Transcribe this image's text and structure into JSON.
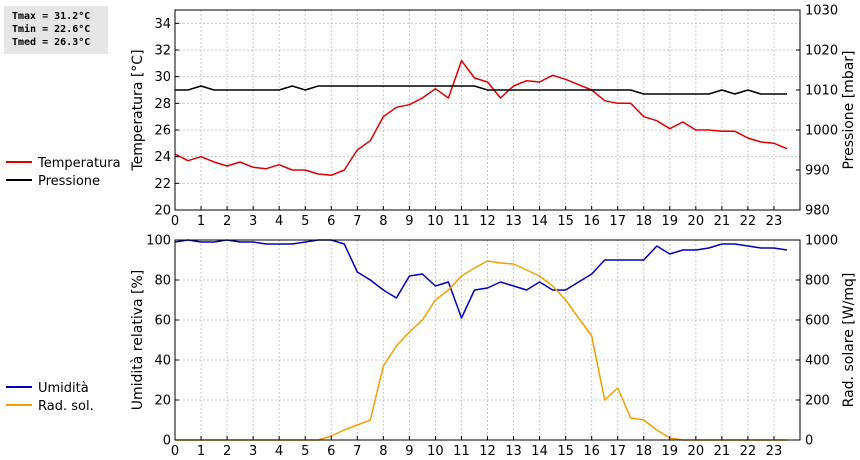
{
  "stats": {
    "tmax": "Tmax = 31.2°C",
    "tmin": "Tmin = 22.6°C",
    "tmed": "Tmed = 26.3°C"
  },
  "chart_data": [
    {
      "type": "line",
      "ylabel": "Temperatura [°C]",
      "ylabel_right": "Pressione [mbar]",
      "xlim": [
        0,
        24
      ],
      "x_ticks": [
        0,
        1,
        2,
        3,
        4,
        5,
        6,
        7,
        8,
        9,
        10,
        11,
        12,
        13,
        14,
        15,
        16,
        17,
        18,
        19,
        20,
        21,
        22,
        23
      ],
      "ylim": [
        20,
        35
      ],
      "y_ticks": [
        20,
        22,
        24,
        26,
        28,
        30,
        32,
        34
      ],
      "ylim_right": [
        980,
        1030
      ],
      "y_ticks_right": [
        980,
        990,
        1000,
        1010,
        1020,
        1030
      ],
      "grid": true,
      "legend": "left",
      "series": [
        {
          "name": "Temperatura",
          "color": "#dd0000",
          "axis": "left",
          "x": [
            0,
            0.5,
            1,
            1.5,
            2,
            2.5,
            3,
            3.5,
            4,
            4.5,
            5,
            5.5,
            6,
            6.5,
            7,
            7.5,
            8,
            8.5,
            9,
            9.5,
            10,
            10.5,
            11,
            11.5,
            12,
            12.5,
            13,
            13.5,
            14,
            14.5,
            15,
            15.5,
            16,
            16.5,
            17,
            17.5,
            18,
            18.5,
            19,
            19.5,
            20,
            20.5,
            21,
            21.5,
            22,
            22.5,
            23,
            23.5
          ],
          "values": [
            24.2,
            23.7,
            24.0,
            23.6,
            23.3,
            23.6,
            23.2,
            23.1,
            23.4,
            23.0,
            23.0,
            22.7,
            22.6,
            23.0,
            24.5,
            25.2,
            27.0,
            27.7,
            27.9,
            28.4,
            29.1,
            28.4,
            31.2,
            29.9,
            29.6,
            28.4,
            29.3,
            29.7,
            29.6,
            30.1,
            29.8,
            29.4,
            29.0,
            28.2,
            28.0,
            28.0,
            27.0,
            26.7,
            26.1,
            26.6,
            26.0,
            26.0,
            25.9,
            25.9,
            25.4,
            25.1,
            25.0,
            24.6
          ]
        },
        {
          "name": "Pressione",
          "color": "#000000",
          "axis": "right",
          "x": [
            0,
            0.5,
            1,
            1.5,
            2,
            2.5,
            3,
            3.5,
            4,
            4.5,
            5,
            5.5,
            6,
            6.5,
            7,
            7.5,
            8,
            8.5,
            9,
            9.5,
            10,
            10.5,
            11,
            11.5,
            12,
            12.5,
            13,
            13.5,
            14,
            14.5,
            15,
            15.5,
            16,
            16.5,
            17,
            17.5,
            18,
            18.5,
            19,
            19.5,
            20,
            20.5,
            21,
            21.5,
            22,
            22.5,
            23,
            23.5
          ],
          "values": [
            1010,
            1010,
            1011,
            1010,
            1010,
            1010,
            1010,
            1010,
            1010,
            1011,
            1010,
            1011,
            1011,
            1011,
            1011,
            1011,
            1011,
            1011,
            1011,
            1011,
            1011,
            1011,
            1011,
            1011,
            1010,
            1010,
            1010,
            1010,
            1010,
            1010,
            1010,
            1010,
            1010,
            1010,
            1010,
            1010,
            1009,
            1009,
            1009,
            1009,
            1009,
            1009,
            1010,
            1009,
            1010,
            1009,
            1009,
            1009
          ]
        }
      ]
    },
    {
      "type": "line",
      "ylabel": "Umidità relativa [%]",
      "ylabel_right": "Rad. solare [W/mq]",
      "xlim": [
        0,
        24
      ],
      "x_ticks": [
        0,
        1,
        2,
        3,
        4,
        5,
        6,
        7,
        8,
        9,
        10,
        11,
        12,
        13,
        14,
        15,
        16,
        17,
        18,
        19,
        20,
        21,
        22,
        23
      ],
      "ylim": [
        0,
        100
      ],
      "y_ticks": [
        0,
        20,
        40,
        60,
        80,
        100
      ],
      "ylim_right": [
        0,
        1000
      ],
      "y_ticks_right": [
        0,
        200,
        400,
        600,
        800,
        1000
      ],
      "grid": true,
      "legend": "left",
      "series": [
        {
          "name": "Umidità",
          "color": "#0000bb",
          "axis": "left",
          "x": [
            0,
            0.5,
            1,
            1.5,
            2,
            2.5,
            3,
            3.5,
            4,
            4.5,
            5,
            5.5,
            6,
            6.5,
            7,
            7.5,
            8,
            8.5,
            9,
            9.5,
            10,
            10.5,
            11,
            11.5,
            12,
            12.5,
            13,
            13.5,
            14,
            14.5,
            15,
            15.5,
            16,
            16.5,
            17,
            17.5,
            18,
            18.5,
            19,
            19.5,
            20,
            20.5,
            21,
            21.5,
            22,
            22.5,
            23,
            23.5
          ],
          "values": [
            99,
            100,
            99,
            99,
            100,
            99,
            99,
            98,
            98,
            98,
            99,
            100,
            100,
            98,
            84,
            80,
            75,
            71,
            82,
            83,
            77,
            79,
            61,
            75,
            76,
            79,
            77,
            75,
            79,
            75,
            75,
            79,
            83,
            90,
            90,
            90,
            90,
            97,
            93,
            95,
            95,
            96,
            98,
            98,
            97,
            96,
            96,
            95
          ]
        },
        {
          "name": "Rad. sol.",
          "color": "#f0a000",
          "axis": "right",
          "x": [
            0,
            0.5,
            1,
            1.5,
            2,
            2.5,
            3,
            3.5,
            4,
            4.5,
            5,
            5.5,
            6,
            6.5,
            7,
            7.5,
            8,
            8.5,
            9,
            9.5,
            10,
            10.5,
            11,
            11.5,
            12,
            12.5,
            13,
            13.5,
            14,
            14.5,
            15,
            15.5,
            16,
            16.5,
            17,
            17.5,
            18,
            18.5,
            19,
            19.5,
            20,
            20.5,
            21,
            21.5,
            22,
            22.5,
            23,
            23.5
          ],
          "values": [
            0,
            0,
            0,
            0,
            0,
            0,
            0,
            0,
            0,
            0,
            0,
            0,
            20,
            50,
            75,
            100,
            370,
            470,
            540,
            600,
            700,
            750,
            820,
            860,
            895,
            885,
            880,
            850,
            820,
            770,
            700,
            610,
            520,
            200,
            260,
            110,
            100,
            50,
            10,
            0,
            0,
            0,
            0,
            0,
            0,
            0,
            0,
            0
          ]
        }
      ]
    }
  ]
}
